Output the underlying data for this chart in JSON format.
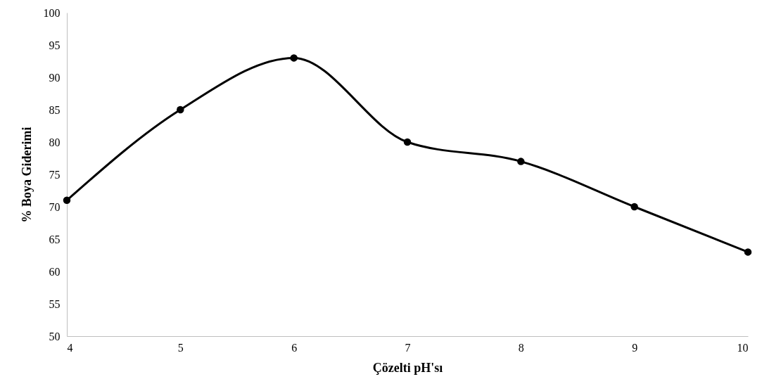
{
  "chart_data": {
    "type": "line",
    "xlabel": "Çözelti pH'sı",
    "ylabel": "% Boya Giderimi",
    "x": [
      4,
      5,
      6,
      7,
      8,
      9,
      10
    ],
    "series": [
      {
        "color": "#000000",
        "values": [
          71,
          85,
          93,
          80,
          77,
          70,
          63
        ]
      }
    ],
    "xlim": [
      4,
      10
    ],
    "xticks": [
      4,
      5,
      6,
      7,
      8,
      9,
      10
    ],
    "ylim": [
      50,
      100
    ],
    "yticks": [
      50,
      55,
      60,
      65,
      70,
      75,
      80,
      85,
      90,
      95,
      100
    ],
    "marker": "circle",
    "line_style": "solid"
  }
}
